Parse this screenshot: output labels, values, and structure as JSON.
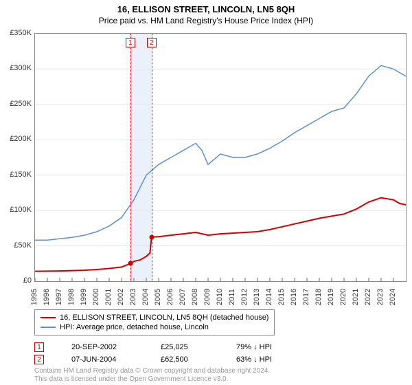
{
  "title": "16, ELLISON STREET, LINCOLN, LN5 8QH",
  "subtitle": "Price paid vs. HM Land Registry's House Price Index (HPI)",
  "chart": {
    "type": "line",
    "background_color": "#ffffff",
    "grid_color": "#e5e5e5",
    "border_color": "#888888",
    "xlim": [
      1995,
      2025
    ],
    "ylim": [
      0,
      350000
    ],
    "ytick_step": 50000,
    "y_ticks": [
      "£0",
      "£50K",
      "£100K",
      "£150K",
      "£200K",
      "£250K",
      "£300K",
      "£350K"
    ],
    "x_ticks": [
      "1995",
      "1996",
      "1997",
      "1998",
      "1999",
      "2000",
      "2001",
      "2002",
      "2003",
      "2004",
      "2005",
      "2006",
      "2007",
      "2008",
      "2009",
      "2010",
      "2011",
      "2012",
      "2013",
      "2014",
      "2015",
      "2016",
      "2017",
      "2018",
      "2019",
      "2020",
      "2021",
      "2022",
      "2023",
      "2024"
    ],
    "x_tick_rotation": -90,
    "label_fontsize": 11,
    "title_fontsize": 13,
    "band": {
      "x_from": 2002.72,
      "x_to": 2004.43,
      "color": "#eaf1fa"
    },
    "series": [
      {
        "name": "16, ELLISON STREET, LINCOLN, LN5 8QH (detached house)",
        "color": "#d00000",
        "line_width": 2,
        "points": [
          [
            1995,
            14000
          ],
          [
            1996,
            14200
          ],
          [
            1997,
            14500
          ],
          [
            1998,
            15000
          ],
          [
            1999,
            15500
          ],
          [
            2000,
            16500
          ],
          [
            2001,
            18000
          ],
          [
            2002,
            20000
          ],
          [
            2002.72,
            25025
          ],
          [
            2003,
            28000
          ],
          [
            2003.5,
            30000
          ],
          [
            2004,
            35000
          ],
          [
            2004.3,
            40000
          ],
          [
            2004.43,
            62500
          ],
          [
            2005,
            63000
          ],
          [
            2006,
            65000
          ],
          [
            2007,
            67000
          ],
          [
            2008,
            69000
          ],
          [
            2009,
            65000
          ],
          [
            2010,
            67000
          ],
          [
            2011,
            68000
          ],
          [
            2012,
            69000
          ],
          [
            2013,
            70000
          ],
          [
            2014,
            73000
          ],
          [
            2015,
            77000
          ],
          [
            2016,
            81000
          ],
          [
            2017,
            85000
          ],
          [
            2018,
            89000
          ],
          [
            2019,
            92000
          ],
          [
            2020,
            95000
          ],
          [
            2021,
            102000
          ],
          [
            2022,
            112000
          ],
          [
            2023,
            118000
          ],
          [
            2024,
            115000
          ],
          [
            2024.5,
            110000
          ],
          [
            2025,
            108000
          ]
        ],
        "markers": [
          {
            "id": "1",
            "x": 2002.72,
            "y": 25025
          },
          {
            "id": "2",
            "x": 2004.43,
            "y": 62500
          }
        ]
      },
      {
        "name": "HPI: Average price, detached house, Lincoln",
        "color": "#5b8fd6",
        "line_width": 1.5,
        "points": [
          [
            1995,
            58000
          ],
          [
            1996,
            58000
          ],
          [
            1997,
            60000
          ],
          [
            1998,
            62000
          ],
          [
            1999,
            65000
          ],
          [
            2000,
            70000
          ],
          [
            2001,
            78000
          ],
          [
            2002,
            90000
          ],
          [
            2003,
            115000
          ],
          [
            2004,
            150000
          ],
          [
            2005,
            165000
          ],
          [
            2006,
            175000
          ],
          [
            2007,
            185000
          ],
          [
            2008,
            195000
          ],
          [
            2008.5,
            185000
          ],
          [
            2009,
            165000
          ],
          [
            2010,
            180000
          ],
          [
            2011,
            175000
          ],
          [
            2012,
            175000
          ],
          [
            2013,
            180000
          ],
          [
            2014,
            188000
          ],
          [
            2015,
            198000
          ],
          [
            2016,
            210000
          ],
          [
            2017,
            220000
          ],
          [
            2018,
            230000
          ],
          [
            2019,
            240000
          ],
          [
            2020,
            245000
          ],
          [
            2021,
            265000
          ],
          [
            2022,
            290000
          ],
          [
            2023,
            305000
          ],
          [
            2024,
            300000
          ],
          [
            2024.5,
            295000
          ],
          [
            2025,
            290000
          ]
        ]
      }
    ]
  },
  "legend": {
    "border_color": "#888888",
    "items": [
      {
        "color": "#d00000",
        "label": "16, ELLISON STREET, LINCOLN, LN5 8QH (detached house)"
      },
      {
        "color": "#5b8fd6",
        "label": "HPI: Average price, detached house, Lincoln"
      }
    ]
  },
  "markers_table": {
    "rows": [
      {
        "id": "1",
        "date": "20-SEP-2002",
        "price": "£25,025",
        "pct": "79% ↓ HPI"
      },
      {
        "id": "2",
        "date": "07-JUN-2004",
        "price": "£62,500",
        "pct": "63% ↓ HPI"
      }
    ]
  },
  "footer": {
    "line1": "Contains HM Land Registry data © Crown copyright and database right 2024.",
    "line2": "This data is licensed under the Open Government Licence v3.0."
  }
}
